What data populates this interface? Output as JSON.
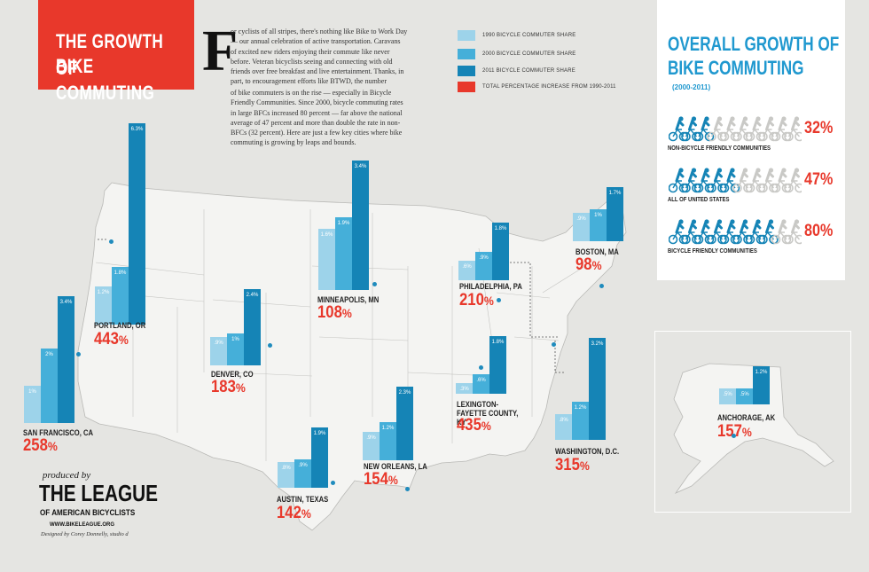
{
  "header": {
    "title_line1": "THE GROWTH OF",
    "title_line2": "BIKE COMMUTING",
    "drop_cap": "F",
    "intro": "or cyclists of all stripes, there's nothing like Bike to Work Day — our annual celebration of active transportation. Caravans of excited new riders enjoying their commute like never before. Veteran bicyclists seeing and connecting with old friends over free breakfast and live entertainment. Thanks, in part, to encouragement efforts like BTWD, the number",
    "intro_cont": "of bike commuters is on the rise — especially in Bicycle Friendly Communities. Since 2000, bicycle commuting rates in large BFCs increased 80 percent — far above the national average of 47 percent and more than double the rate in non-BFCs (32 percent). Here are just a few key cities where bike commuting is growing by leaps and bounds."
  },
  "legend": [
    {
      "label": "1990 BICYCLE COMMUTER SHARE",
      "color": "#9dd3ea"
    },
    {
      "label": "2000 BICYCLE COMMUTER SHARE",
      "color": "#45afd9"
    },
    {
      "label": "2011 BICYCLE COMMUTER SHARE",
      "color": "#1584b6"
    },
    {
      "label": "TOTAL PERCENTAGE INCREASE FROM 1990-2011",
      "color": "#e8382b"
    }
  ],
  "overall": {
    "title_line1": "OVERALL GROWTH OF",
    "title_line2": "BIKE COMMUTING",
    "subtitle": "(2000-2011)",
    "items": [
      {
        "label": "NON-BICYCLE FRIENDLY COMMUNITIES",
        "pct": "32%",
        "value": 32
      },
      {
        "label": "ALL OF UNITED STATES",
        "pct": "47%",
        "value": 47
      },
      {
        "label": "BICYCLE FRIENDLY COMMUNITIES",
        "pct": "80%",
        "value": 80
      }
    ]
  },
  "colors": {
    "y1990": "#9dd3ea",
    "y2000": "#45afd9",
    "y2011": "#1584b6",
    "accent": "#e8382b",
    "blue_text": "#1f98cf",
    "bike_grey": "#c9c9c6"
  },
  "chart_data": {
    "type": "bar",
    "series": [
      {
        "name": "1990 BICYCLE COMMUTER SHARE"
      },
      {
        "name": "2000 BICYCLE COMMUTER SHARE"
      },
      {
        "name": "2011 BICYCLE COMMUTER SHARE"
      }
    ],
    "cities": [
      {
        "name": "SAN FRANCISCO, CA",
        "values": [
          1.0,
          2.0,
          3.4
        ],
        "labels": [
          "1%",
          "2%",
          "3.4%"
        ],
        "increase": "258"
      },
      {
        "name": "PORTLAND, OR",
        "values": [
          1.2,
          1.8,
          6.3
        ],
        "labels": [
          "1.2%",
          "1.8%",
          "6.3%"
        ],
        "increase": "443"
      },
      {
        "name": "DENVER, CO",
        "values": [
          0.9,
          1.0,
          2.4
        ],
        "labels": [
          ".9%",
          "1%",
          "2.4%"
        ],
        "increase": "183"
      },
      {
        "name": "MINNEAPOLIS, MN",
        "values": [
          1.6,
          1.9,
          3.4
        ],
        "labels": [
          "1.6%",
          "1.9%",
          "3.4%"
        ],
        "increase": "108"
      },
      {
        "name": "AUSTIN, TEXAS",
        "values": [
          0.8,
          0.9,
          1.9
        ],
        "labels": [
          ".8%",
          ".9%",
          "1.9%"
        ],
        "increase": "142"
      },
      {
        "name": "NEW ORLEANS, LA",
        "values": [
          0.9,
          1.2,
          2.3
        ],
        "labels": [
          ".9%",
          "1.2%",
          "2.3%"
        ],
        "increase": "154"
      },
      {
        "name": "PHILADELPHIA, PA",
        "values": [
          0.6,
          0.9,
          1.8
        ],
        "labels": [
          ".6%",
          ".9%",
          "1.8%"
        ],
        "increase": "210"
      },
      {
        "name": "LEXINGTON-FAYETTE COUNTY, KY",
        "values": [
          0.3,
          0.6,
          1.8
        ],
        "labels": [
          ".3%",
          ".6%",
          "1.8%"
        ],
        "increase": "435"
      },
      {
        "name": "BOSTON, MA",
        "values": [
          0.9,
          1.0,
          1.7
        ],
        "labels": [
          ".9%",
          "1%",
          "1.7%"
        ],
        "increase": "98"
      },
      {
        "name": "WASHINGTON, D.C.",
        "values": [
          0.8,
          1.2,
          3.2
        ],
        "labels": [
          ".8%",
          "1.2%",
          "3.2%"
        ],
        "increase": "315"
      },
      {
        "name": "ANCHORAGE, AK",
        "values": [
          0.5,
          0.5,
          1.2
        ],
        "labels": [
          ".5%",
          ".5%",
          "1.2%"
        ],
        "increase": "157"
      }
    ]
  },
  "footer": {
    "produced_by": "produced by",
    "org_name": "THE LEAGUE",
    "org_sub": "OF AMERICAN BICYCLISTS",
    "url": "WWW.BIKELEAGUE.ORG",
    "credit": "Designed by Corey Donnelly, studio d"
  }
}
